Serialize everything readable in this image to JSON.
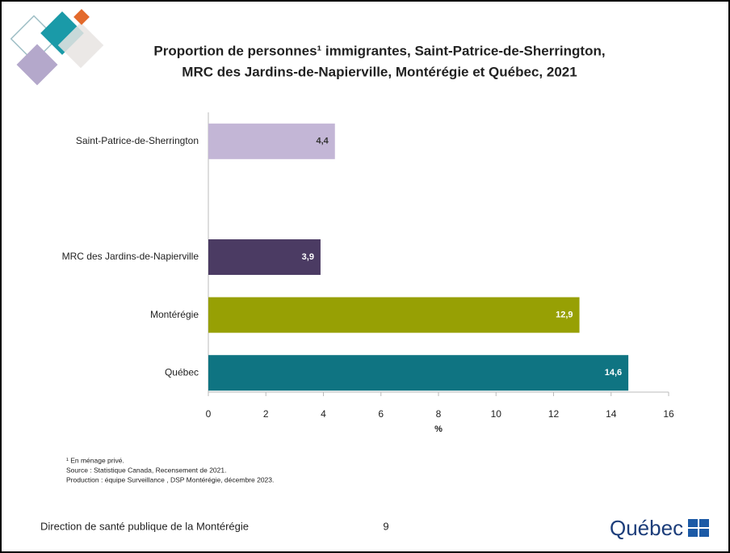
{
  "chart_data": {
    "type": "bar",
    "orientation": "horizontal",
    "title": [
      "Proportion de personnes¹ immigrantes, Saint-Patrice-de-Sherrington,",
      "MRC des Jardins-de-Napierville, Montérégie et Québec, 2021"
    ],
    "categories": [
      "Saint-Patrice-de-Sherrington",
      null,
      "MRC des Jardins-de-Napierville",
      "Montérégie",
      "Québec"
    ],
    "values": [
      4.4,
      null,
      3.9,
      12.9,
      14.6
    ],
    "value_labels": [
      "4,4",
      null,
      "3,9",
      "12,9",
      "14,6"
    ],
    "colors": [
      "#c3b6d6",
      null,
      "#4b3b63",
      "#97a004",
      "#0f7482"
    ],
    "xlabel": "%",
    "xlim": [
      0,
      16
    ],
    "xticks": [
      0,
      2,
      4,
      6,
      8,
      10,
      12,
      14,
      16
    ],
    "notes": [
      "¹ En ménage privé.",
      "Source : Statistique Canada, Recensement de 2021.",
      "Production : équipe Surveillance , DSP Montérégie, décembre 2023."
    ]
  },
  "footer": {
    "organization": "Direction de santé publique de la Montérégie",
    "page": "9",
    "logo": "Québec"
  }
}
